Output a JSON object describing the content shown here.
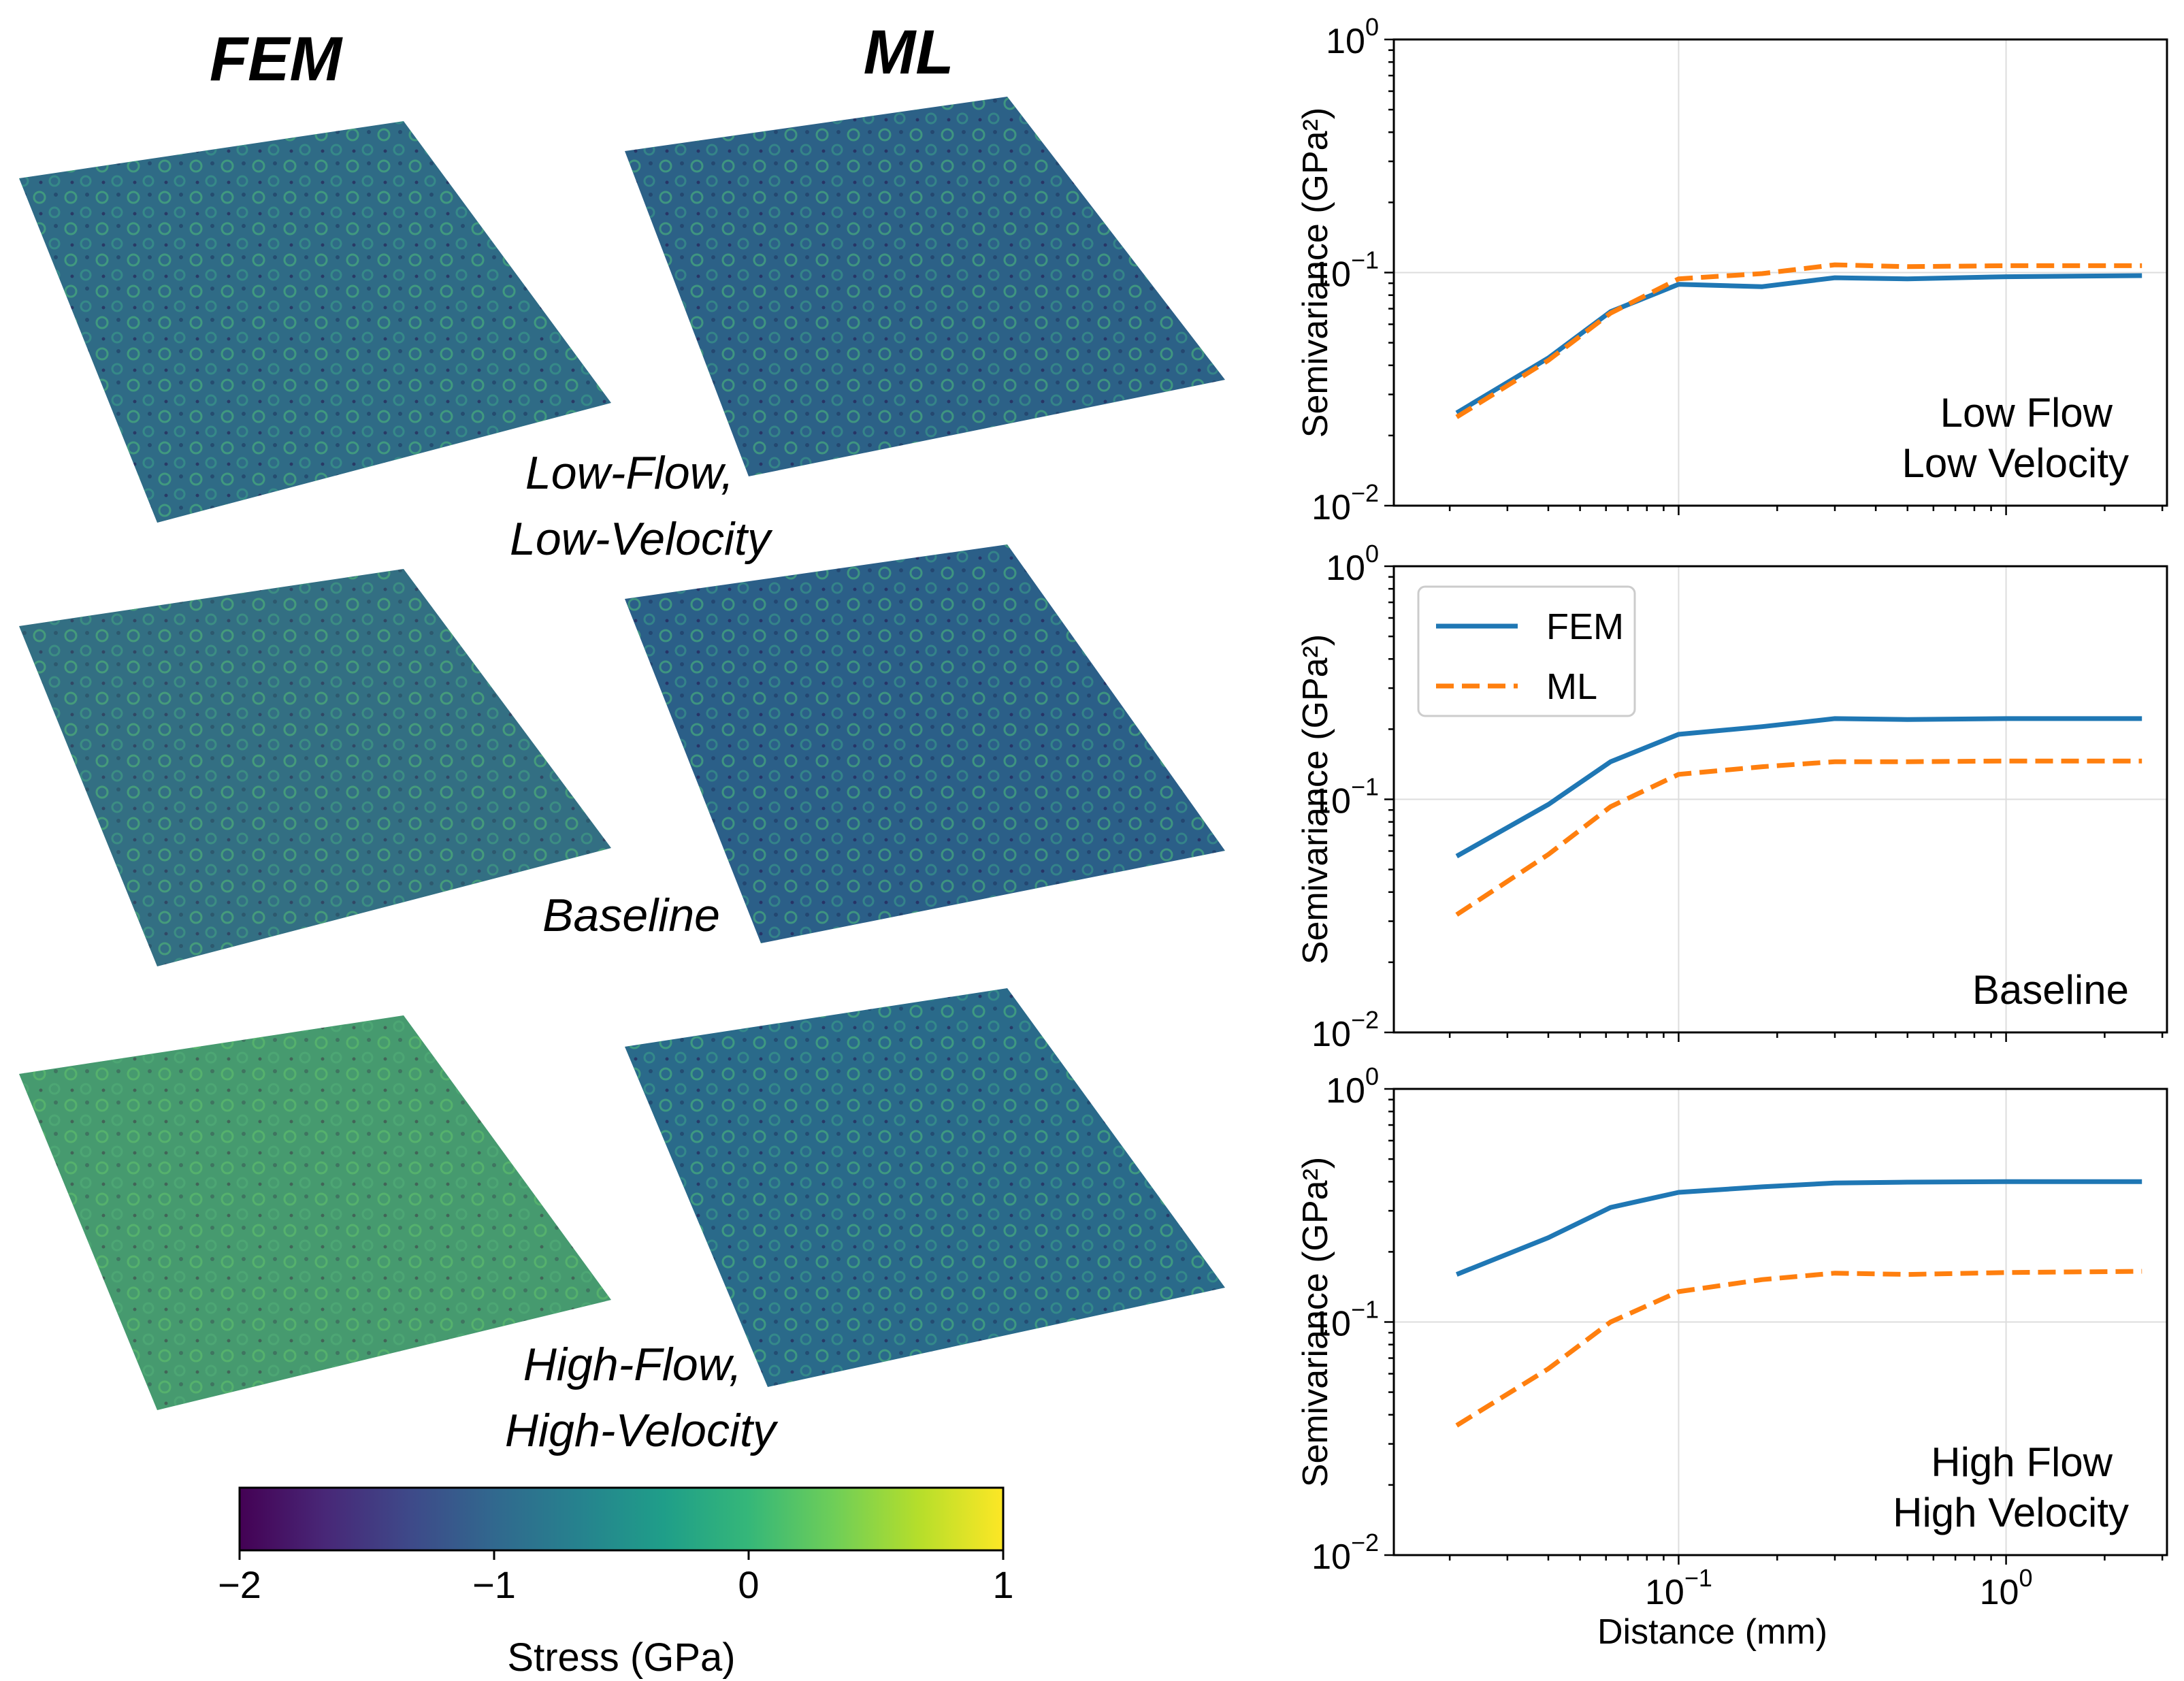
{
  "columns": {
    "fem": "FEM",
    "ml": "ML"
  },
  "conditions": [
    {
      "line1": "Low-Flow,",
      "line2": "Low-Velocity"
    },
    {
      "line1": "Baseline",
      "line2": ""
    },
    {
      "line1": "High-Flow,",
      "line2": "High-Velocity"
    }
  ],
  "colorbar": {
    "label": "Stress (GPa)",
    "ticks": [
      "−2",
      "−1",
      "0",
      "1"
    ],
    "range": [
      -2,
      1
    ],
    "colors": [
      "#440154",
      "#482777",
      "#3e4989",
      "#31688e",
      "#26828e",
      "#1f9e89",
      "#35b779",
      "#6ece58",
      "#b5de2b",
      "#fde725"
    ]
  },
  "palette": {
    "fem_line": "#1f77b4",
    "ml_line": "#ff7f0e",
    "grid": "#dddddd"
  },
  "chart_data": [
    {
      "type": "line",
      "annotation": [
        "Low Flow",
        "Low Velocity"
      ],
      "ylabel": "Semivariance (GPa²)",
      "xlabel": "",
      "xscale": "log",
      "yscale": "log",
      "xlim": [
        0.0135,
        3.1
      ],
      "ylim": [
        0.01,
        1
      ],
      "legend": false,
      "x": [
        0.021,
        0.04,
        0.062,
        0.1,
        0.18,
        0.3,
        0.5,
        1.0,
        2.6
      ],
      "series": [
        {
          "name": "FEM",
          "values": [
            0.025,
            0.043,
            0.068,
            0.089,
            0.087,
            0.095,
            0.094,
            0.096,
            0.097
          ]
        },
        {
          "name": "ML",
          "values": [
            0.024,
            0.042,
            0.067,
            0.094,
            0.099,
            0.108,
            0.106,
            0.107,
            0.107
          ]
        }
      ],
      "yticks": [
        {
          "m": "10",
          "e": "−2"
        },
        {
          "m": "10",
          "e": "−1"
        },
        {
          "m": "10",
          "e": "0"
        }
      ],
      "xticks": []
    },
    {
      "type": "line",
      "annotation": [
        "Baseline"
      ],
      "ylabel": "Semivariance (GPa²)",
      "xlabel": "",
      "xscale": "log",
      "yscale": "log",
      "xlim": [
        0.0135,
        3.1
      ],
      "ylim": [
        0.01,
        1
      ],
      "legend": true,
      "x": [
        0.021,
        0.04,
        0.062,
        0.1,
        0.18,
        0.3,
        0.5,
        1.0,
        2.6
      ],
      "series": [
        {
          "name": "FEM",
          "values": [
            0.057,
            0.095,
            0.145,
            0.19,
            0.205,
            0.222,
            0.22,
            0.222,
            0.222
          ]
        },
        {
          "name": "ML",
          "values": [
            0.032,
            0.058,
            0.093,
            0.128,
            0.138,
            0.145,
            0.145,
            0.146,
            0.146
          ]
        }
      ],
      "yticks": [
        {
          "m": "10",
          "e": "−2"
        },
        {
          "m": "10",
          "e": "−1"
        },
        {
          "m": "10",
          "e": "0"
        }
      ],
      "xticks": []
    },
    {
      "type": "line",
      "annotation": [
        "High Flow",
        "High Velocity"
      ],
      "ylabel": "Semivariance (GPa²)",
      "xlabel": "Distance (mm)",
      "xscale": "log",
      "yscale": "log",
      "xlim": [
        0.0135,
        3.1
      ],
      "ylim": [
        0.01,
        1
      ],
      "legend": false,
      "x": [
        0.021,
        0.04,
        0.062,
        0.1,
        0.18,
        0.3,
        0.5,
        1.0,
        2.6
      ],
      "series": [
        {
          "name": "FEM",
          "values": [
            0.16,
            0.23,
            0.31,
            0.36,
            0.38,
            0.395,
            0.398,
            0.4,
            0.4
          ]
        },
        {
          "name": "ML",
          "values": [
            0.036,
            0.063,
            0.1,
            0.135,
            0.152,
            0.162,
            0.16,
            0.163,
            0.165
          ]
        }
      ],
      "yticks": [
        {
          "m": "10",
          "e": "−2"
        },
        {
          "m": "10",
          "e": "−1"
        },
        {
          "m": "10",
          "e": "0"
        }
      ],
      "xticks": [
        {
          "m": "10",
          "e": "−1"
        },
        {
          "m": "10",
          "e": "0"
        }
      ]
    }
  ]
}
